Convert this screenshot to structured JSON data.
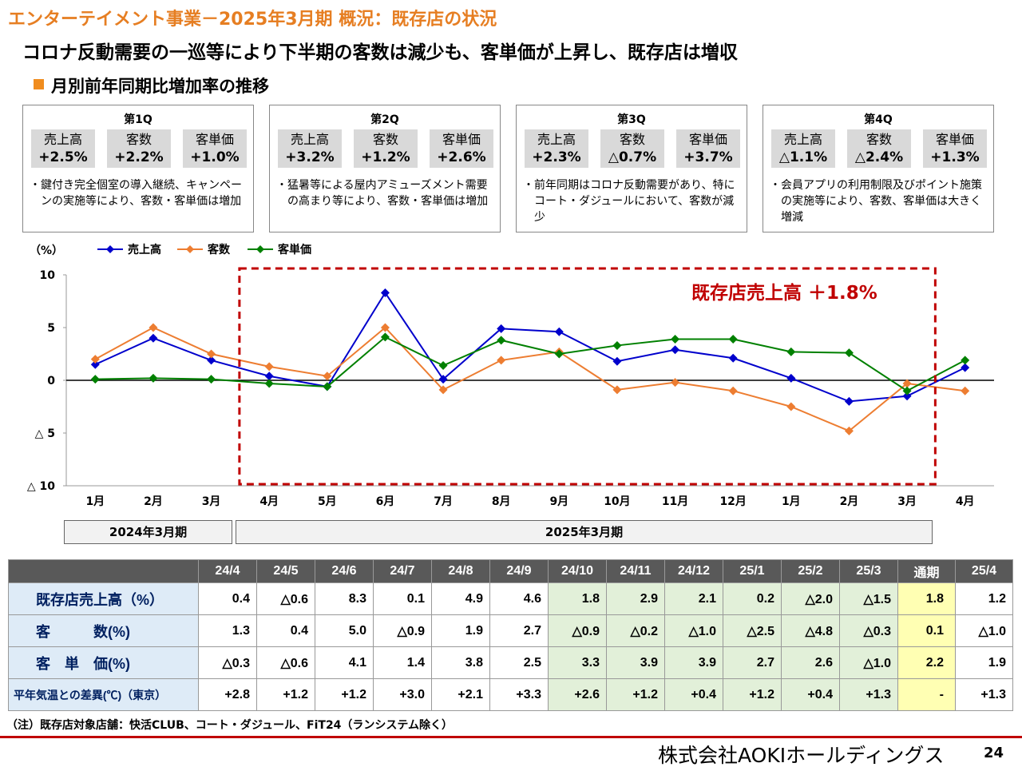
{
  "title": "エンターテイメント事業－2025年3月期 概況：既存店の状況",
  "subtitle": "コロナ反動需要の一巡等により下半期の客数は減少も、客単価が上昇し、既存店は増収",
  "section_title": "月別前年同期比増加率の推移",
  "quarters": [
    {
      "title": "第1Q",
      "metrics": [
        {
          "label": "売上高",
          "value": "+2.5%"
        },
        {
          "label": "客数",
          "value": "+2.2%"
        },
        {
          "label": "客単価",
          "value": "+1.0%"
        }
      ],
      "note": "・鍵付き完全個室の導入継続、キャンペーンの実施等により、客数・客単価は増加"
    },
    {
      "title": "第2Q",
      "metrics": [
        {
          "label": "売上高",
          "value": "+3.2%"
        },
        {
          "label": "客数",
          "value": "+1.2%"
        },
        {
          "label": "客単価",
          "value": "+2.6%"
        }
      ],
      "note": "・猛暑等による屋内アミューズメント需要の高まり等により、客数・客単価は増加"
    },
    {
      "title": "第3Q",
      "metrics": [
        {
          "label": "売上高",
          "value": "+2.3%"
        },
        {
          "label": "客数",
          "value": "△0.7%"
        },
        {
          "label": "客単価",
          "value": "+3.7%"
        }
      ],
      "note": "・前年同期はコロナ反動需要があり、特にコート・ダジュールにおいて、客数が減少"
    },
    {
      "title": "第4Q",
      "metrics": [
        {
          "label": "売上高",
          "value": "△1.1%"
        },
        {
          "label": "客数",
          "value": "△2.4%"
        },
        {
          "label": "客単価",
          "value": "+1.3%"
        }
      ],
      "note": "・会員アプリの利用制限及びポイント施策の実施等により、客数、客単価は大きく増減"
    }
  ],
  "chart_data": {
    "type": "line",
    "ylabel": "（%）",
    "categories": [
      "1月",
      "2月",
      "3月",
      "4月",
      "5月",
      "6月",
      "7月",
      "8月",
      "9月",
      "10月",
      "11月",
      "12月",
      "1月",
      "2月",
      "3月",
      "4月"
    ],
    "ylim": [
      -10,
      10
    ],
    "yticks": [
      10,
      5,
      0,
      -5,
      -10
    ],
    "ytick_labels": [
      "10",
      "5",
      "0",
      "△ 5",
      "△ 10"
    ],
    "series": [
      {
        "name": "売上高",
        "color": "#0000CC",
        "marker": "diamond",
        "values": [
          1.5,
          4.0,
          1.9,
          0.4,
          -0.6,
          8.3,
          0.1,
          4.9,
          4.6,
          1.8,
          2.9,
          2.1,
          0.2,
          -2.0,
          -1.5,
          1.2
        ]
      },
      {
        "name": "客数",
        "color": "#ED7D31",
        "marker": "diamond",
        "values": [
          2.0,
          5.0,
          2.5,
          1.3,
          0.4,
          5.0,
          -0.9,
          1.9,
          2.7,
          -0.9,
          -0.2,
          -1.0,
          -2.5,
          -4.8,
          -0.3,
          -1.0
        ]
      },
      {
        "name": "客単価",
        "color": "#008000",
        "marker": "diamond",
        "values": [
          0.1,
          0.2,
          0.1,
          -0.3,
          -0.6,
          4.1,
          1.4,
          3.8,
          2.5,
          3.3,
          3.9,
          3.9,
          2.7,
          2.6,
          -1.0,
          1.9
        ]
      }
    ],
    "legend_position": "top-left",
    "grid": false,
    "annotation": "既存店売上高 ＋1.8%",
    "highlight_range": [
      "4月",
      "3月"
    ],
    "annotation_color": "#C00000"
  },
  "periods": [
    {
      "label": "2024年3月期"
    },
    {
      "label": "2025年3月期"
    }
  ],
  "table": {
    "headers": [
      "24/4",
      "24/5",
      "24/6",
      "24/7",
      "24/8",
      "24/9",
      "24/10",
      "24/11",
      "24/12",
      "25/1",
      "25/2",
      "25/3",
      "通期",
      "25/4"
    ],
    "rows": [
      {
        "label": "既存店売上高（%）",
        "values": [
          "0.4",
          "△0.6",
          "8.3",
          "0.1",
          "4.9",
          "4.6",
          "1.8",
          "2.9",
          "2.1",
          "0.2",
          "△2.0",
          "△1.5",
          "1.8",
          "1.2"
        ]
      },
      {
        "label": "客　　　数(%)",
        "values": [
          "1.3",
          "0.4",
          "5.0",
          "△0.9",
          "1.9",
          "2.7",
          "△0.9",
          "△0.2",
          "△1.0",
          "△2.5",
          "△4.8",
          "△0.3",
          "0.1",
          "△1.0"
        ]
      },
      {
        "label": "客　単　価(%)",
        "values": [
          "△0.3",
          "△0.6",
          "4.1",
          "1.4",
          "3.8",
          "2.5",
          "3.3",
          "3.9",
          "3.9",
          "2.7",
          "2.6",
          "△1.0",
          "2.2",
          "1.9"
        ]
      },
      {
        "label": "平年気温との差異(℃)（東京）",
        "values": [
          "+2.8",
          "+1.2",
          "+1.2",
          "+3.0",
          "+2.1",
          "+3.3",
          "+2.6",
          "+1.2",
          "+0.4",
          "+1.2",
          "+0.4",
          "+1.3",
          "-",
          "+1.3"
        ]
      }
    ]
  },
  "footnote": "（注）既存店対象店舗：快活CLUB、コート・ダジュール、FiT24（ランシステム除く）",
  "company": "株式会社AOKIホールディングス",
  "page_number": "24",
  "colors": {
    "title_orange": "#E67E22",
    "accent_red": "#C00000",
    "header_gray": "#595959",
    "rowhead_blue": "#DEEBF7",
    "highlight_green": "#E2F0D9",
    "highlight_yellow": "#FFFFB3"
  }
}
